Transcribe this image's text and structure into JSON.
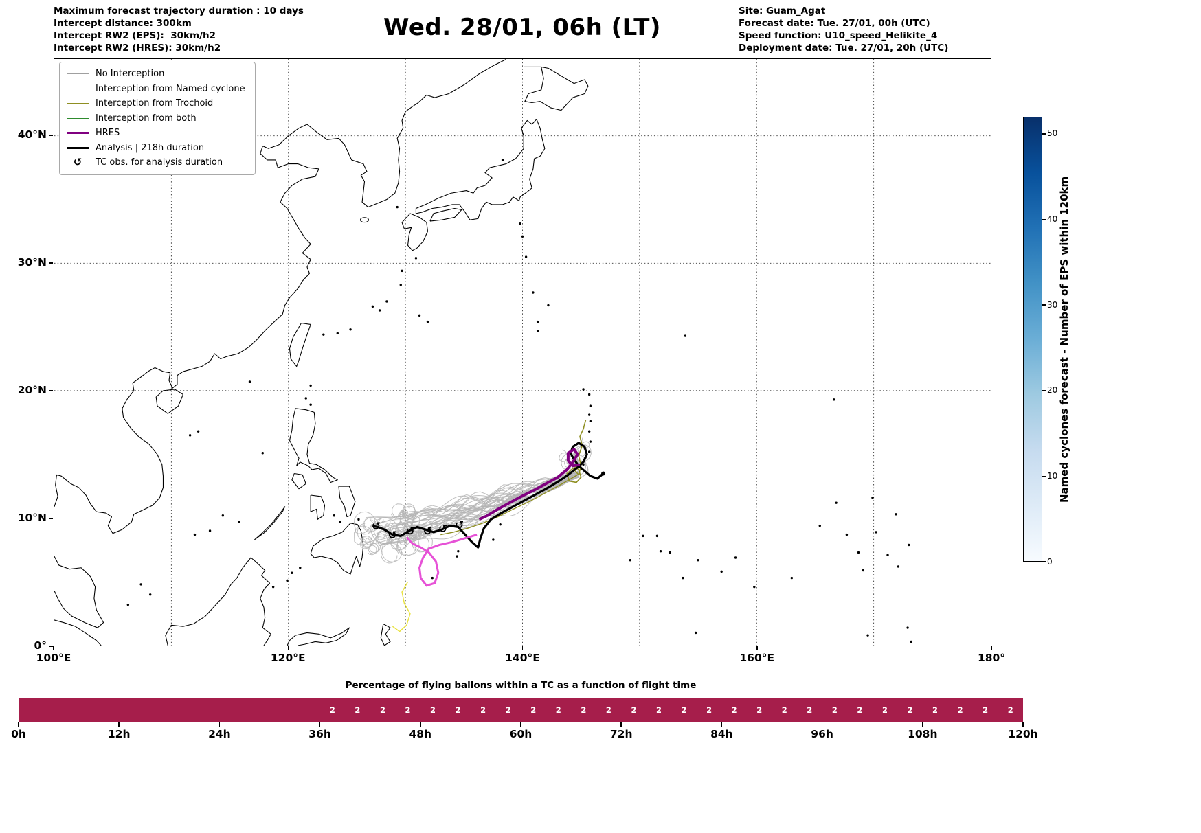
{
  "header": {
    "title": "Wed. 28/01, 06h (LT)",
    "left_lines": [
      "Maximum forecast trajectory duration : 10 days",
      "Intercept distance: 300km",
      "Intercept RW2 (EPS):  30km/h2",
      "Intercept RW2 (HRES): 30km/h2"
    ],
    "right_lines": [
      "Site: Guam_Agat",
      "Forecast date: Tue. 27/01, 00h (UTC)",
      "Speed function: U10_speed_Helikite_4",
      "Deployment date: Tue. 27/01, 20h (UTC)"
    ]
  },
  "legend": {
    "items": [
      {
        "label": "No Interception",
        "kind": "line",
        "color": "#a0a0a0",
        "lw": 1.5
      },
      {
        "label": "Interception from Named cyclone",
        "kind": "line",
        "color": "#ff4500",
        "lw": 1.5
      },
      {
        "label": "Interception from Trochoid",
        "kind": "line",
        "color": "#8f8f22",
        "lw": 1.5
      },
      {
        "label": "Interception from both",
        "kind": "line",
        "color": "#2e8b2e",
        "lw": 1.5
      },
      {
        "label": "HRES",
        "kind": "line",
        "color": "#800080",
        "lw": 3.5
      },
      {
        "label": "Analysis | 218h duration",
        "kind": "line",
        "color": "#000000",
        "lw": 3
      },
      {
        "label": "TC obs. for analysis duration",
        "kind": "symbol",
        "symbol": "↺"
      }
    ]
  },
  "map": {
    "x_ticks": [
      {
        "label": "100°E",
        "lon": 100
      },
      {
        "label": "120°E",
        "lon": 120
      },
      {
        "label": "140°E",
        "lon": 140
      },
      {
        "label": "160°E",
        "lon": 160
      },
      {
        "label": "180°",
        "lon": 180
      }
    ],
    "y_ticks": [
      {
        "label": "0°",
        "lat": 0
      },
      {
        "label": "10°N",
        "lat": 10
      },
      {
        "label": "20°N",
        "lat": 20
      },
      {
        "label": "30°N",
        "lat": 30
      },
      {
        "label": "40°N",
        "lat": 40
      }
    ],
    "grid_lons": [
      110,
      120,
      130,
      140,
      150,
      160,
      170
    ],
    "grid_lats": [
      10,
      20,
      30,
      40
    ]
  },
  "tracks": {
    "analysis": {
      "color": "#000000",
      "width": 3.2,
      "points": [
        [
          146.9,
          13.5
        ],
        [
          146.4,
          13.1
        ],
        [
          145.8,
          13.3
        ],
        [
          145.3,
          13.7
        ],
        [
          144.8,
          14.1
        ],
        [
          144.4,
          14.6
        ],
        [
          144.1,
          15.1
        ],
        [
          144.3,
          15.6
        ],
        [
          144.8,
          15.9
        ],
        [
          145.3,
          15.6
        ],
        [
          145.5,
          15.0
        ],
        [
          145.2,
          14.4
        ],
        [
          144.6,
          13.9
        ],
        [
          143.9,
          13.4
        ],
        [
          143.1,
          12.9
        ],
        [
          142.2,
          12.4
        ],
        [
          141.2,
          11.9
        ],
        [
          140.2,
          11.4
        ],
        [
          139.2,
          10.9
        ],
        [
          138.2,
          10.4
        ],
        [
          137.3,
          9.9
        ],
        [
          136.7,
          9.2
        ],
        [
          136.4,
          8.4
        ],
        [
          136.2,
          7.7
        ],
        [
          135.7,
          8.1
        ],
        [
          135.1,
          8.7
        ],
        [
          134.5,
          9.3
        ],
        [
          133.8,
          9.4
        ],
        [
          133.1,
          9.1
        ],
        [
          132.4,
          8.9
        ],
        [
          131.7,
          9.1
        ],
        [
          131.0,
          9.3
        ],
        [
          130.3,
          9.0
        ],
        [
          129.6,
          8.6
        ],
        [
          128.9,
          8.7
        ],
        [
          128.2,
          9.1
        ],
        [
          127.6,
          9.3
        ],
        [
          127.2,
          9.4
        ]
      ]
    },
    "hres": {
      "color": "#800080",
      "width": 4,
      "points": [
        [
          136.3,
          9.9
        ],
        [
          137.0,
          10.2
        ],
        [
          137.9,
          10.7
        ],
        [
          138.9,
          11.2
        ],
        [
          139.9,
          11.7
        ],
        [
          141.0,
          12.2
        ],
        [
          142.0,
          12.7
        ],
        [
          143.0,
          13.2
        ],
        [
          143.8,
          13.8
        ],
        [
          144.3,
          14.4
        ],
        [
          144.7,
          15.0
        ],
        [
          144.4,
          15.4
        ],
        [
          143.9,
          15.1
        ],
        [
          143.9,
          14.5
        ],
        [
          144.3,
          14.1
        ],
        [
          144.9,
          14.2
        ]
      ]
    },
    "pink_track": {
      "color": "#e651d6",
      "width": 3,
      "points": [
        [
          136.1,
          8.7
        ],
        [
          135.0,
          8.4
        ],
        [
          133.9,
          8.1
        ],
        [
          132.9,
          7.9
        ],
        [
          132.0,
          7.6
        ],
        [
          131.5,
          6.9
        ],
        [
          131.2,
          6.1
        ],
        [
          131.3,
          5.3
        ],
        [
          131.8,
          4.7
        ],
        [
          132.5,
          4.9
        ],
        [
          132.8,
          5.7
        ],
        [
          132.6,
          6.6
        ],
        [
          132.0,
          7.3
        ],
        [
          131.3,
          7.7
        ],
        [
          130.6,
          8.0
        ],
        [
          130.1,
          8.5
        ]
      ]
    },
    "trochoid_tracks": [
      {
        "color": "#8f8f22",
        "width": 1.6,
        "points": [
          [
            144.8,
            13.4
          ],
          [
            145.0,
            14.1
          ],
          [
            144.8,
            14.9
          ],
          [
            145.1,
            15.7
          ],
          [
            144.9,
            16.4
          ],
          [
            145.2,
            17.0
          ],
          [
            145.4,
            17.7
          ]
        ]
      },
      {
        "color": "#8f8f22",
        "width": 1.6,
        "points": [
          [
            144.8,
            13.4
          ],
          [
            144.3,
            13.9
          ],
          [
            143.8,
            13.5
          ],
          [
            144.0,
            12.9
          ],
          [
            144.6,
            12.8
          ],
          [
            145.0,
            13.2
          ],
          [
            144.8,
            13.8
          ],
          [
            144.2,
            14.2
          ]
        ]
      },
      {
        "color": "#8f8f22",
        "width": 1.4,
        "points": [
          [
            144.7,
            13.4
          ],
          [
            143.4,
            12.7
          ],
          [
            142.0,
            12.0
          ],
          [
            140.6,
            11.3
          ],
          [
            139.2,
            10.7
          ],
          [
            137.9,
            10.1
          ],
          [
            136.6,
            9.6
          ],
          [
            135.3,
            9.2
          ],
          [
            134.1,
            8.9
          ],
          [
            133.0,
            8.7
          ]
        ]
      }
    ],
    "yellow_track": {
      "color": "#e8e23c",
      "width": 1.4,
      "points": [
        [
          130.2,
          5.0
        ],
        [
          129.7,
          4.2
        ],
        [
          129.9,
          3.3
        ],
        [
          130.4,
          2.5
        ],
        [
          130.1,
          1.6
        ],
        [
          129.5,
          1.1
        ],
        [
          128.9,
          1.5
        ]
      ]
    },
    "tc_obs": {
      "symbol": "↺",
      "points": [
        [
          134.6,
          9.5
        ],
        [
          133.2,
          9.2
        ],
        [
          131.9,
          9.0
        ],
        [
          130.4,
          9.0
        ],
        [
          128.9,
          8.7
        ],
        [
          127.5,
          9.4
        ]
      ]
    },
    "ensemble": {
      "color": "#b4b4b4",
      "width": 1,
      "seed": 11,
      "long_count": 38,
      "short_count": 10,
      "start": [
        144.75,
        13.45
      ]
    }
  },
  "colorbar": {
    "label": "Named cyclones forecast - Number of EPS within 120km",
    "ticks": [
      0,
      10,
      20,
      30,
      40,
      50
    ],
    "vmax": 52,
    "gradient": [
      "#f7fbff",
      "#deebf7",
      "#c6dbef",
      "#9ecae1",
      "#6baed6",
      "#4292c6",
      "#2171b5",
      "#08519c",
      "#08306b"
    ]
  },
  "chart_data": {
    "type": "bar",
    "title": "Percentage of flying ballons within a TC as a function of flight time",
    "x_ticks": [
      {
        "label": "0h",
        "t": 0
      },
      {
        "label": "12h",
        "t": 12
      },
      {
        "label": "24h",
        "t": 24
      },
      {
        "label": "36h",
        "t": 36
      },
      {
        "label": "48h",
        "t": 48
      },
      {
        "label": "60h",
        "t": 60
      },
      {
        "label": "72h",
        "t": 72
      },
      {
        "label": "84h",
        "t": 84
      },
      {
        "label": "96h",
        "t": 96
      },
      {
        "label": "108h",
        "t": 108
      },
      {
        "label": "120h",
        "t": 120
      }
    ],
    "x_range_hours": [
      0,
      120
    ],
    "bar": {
      "start": 0,
      "end": 120,
      "color": "#a61e4b"
    },
    "point_labels": {
      "value": "2",
      "times": [
        37.5,
        40.5,
        43.5,
        46.5,
        49.5,
        52.5,
        55.5,
        58.5,
        61.5,
        64.5,
        67.5,
        70.5,
        73.5,
        76.5,
        79.5,
        82.5,
        85.5,
        88.5,
        91.5,
        94.5,
        97.5,
        100.5,
        103.5,
        106.5,
        109.5,
        112.5,
        115.5,
        118.5
      ]
    }
  }
}
